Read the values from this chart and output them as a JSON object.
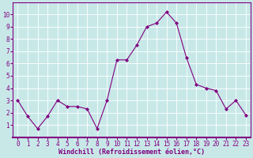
{
  "x": [
    0,
    1,
    2,
    3,
    4,
    5,
    6,
    7,
    8,
    9,
    10,
    11,
    12,
    13,
    14,
    15,
    16,
    17,
    18,
    19,
    20,
    21,
    22,
    23
  ],
  "y": [
    3.0,
    1.7,
    0.7,
    1.7,
    3.0,
    2.5,
    2.5,
    2.3,
    0.7,
    3.0,
    6.3,
    6.3,
    7.5,
    9.0,
    9.3,
    10.2,
    9.3,
    6.5,
    4.3,
    4.0,
    3.8,
    2.3,
    3.0,
    1.8
  ],
  "line_color": "#800080",
  "marker": "D",
  "marker_size": 2.0,
  "bg_color": "#c8e8e8",
  "grid_color": "#ffffff",
  "xlabel": "Windchill (Refroidissement éolien,°C)",
  "xlabel_color": "#800080",
  "tick_color": "#800080",
  "xlim": [
    -0.5,
    23.5
  ],
  "ylim": [
    0,
    11
  ],
  "yticks": [
    1,
    2,
    3,
    4,
    5,
    6,
    7,
    8,
    9,
    10
  ],
  "xticks": [
    0,
    1,
    2,
    3,
    4,
    5,
    6,
    7,
    8,
    9,
    10,
    11,
    12,
    13,
    14,
    15,
    16,
    17,
    18,
    19,
    20,
    21,
    22,
    23
  ],
  "spine_color": "#800080",
  "tick_fontsize": 5.5,
  "xlabel_fontsize": 6.0
}
